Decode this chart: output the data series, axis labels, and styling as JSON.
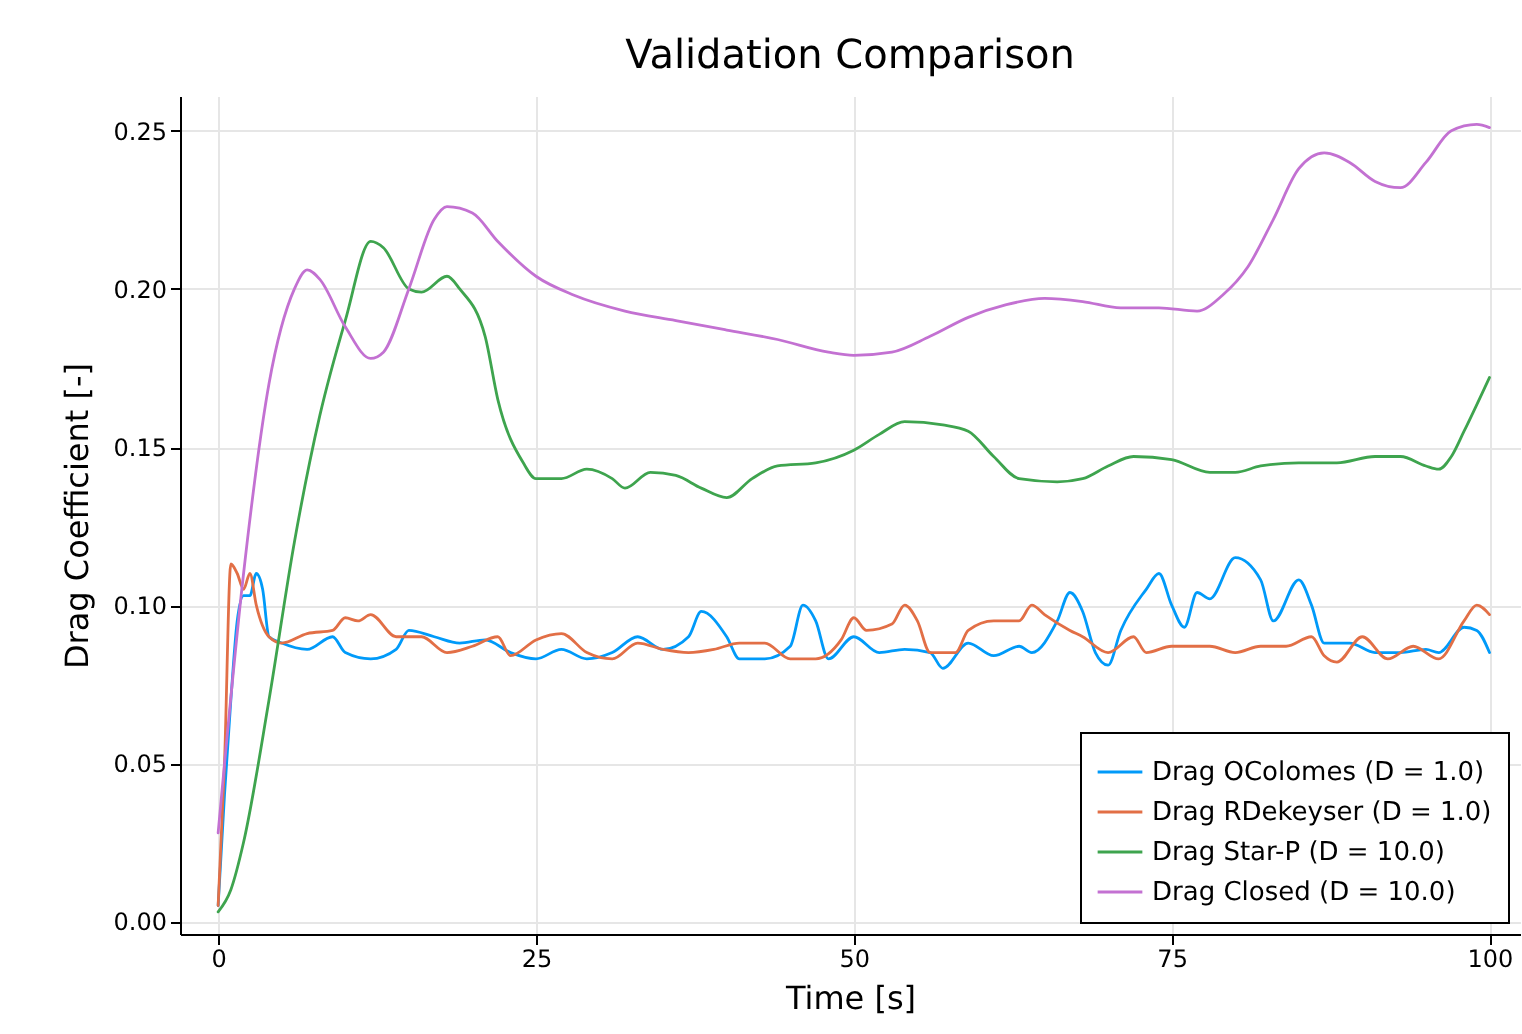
{
  "chart_data": {
    "type": "line",
    "title": "Validation Comparison",
    "xlabel": "Time [s]",
    "ylabel": "Drag Coefficient [-]",
    "xlim": [
      -3,
      102.4
    ],
    "ylim": [
      -0.004,
      0.261
    ],
    "xticks": [
      0,
      25,
      50,
      75,
      100
    ],
    "yticks": [
      {
        "value": 0,
        "label": "0.00"
      },
      {
        "value": 0.05,
        "label": "0.05"
      },
      {
        "value": 0.1,
        "label": "0.10"
      },
      {
        "value": 0.15,
        "label": "0.15"
      },
      {
        "value": 0.2,
        "label": "0.20"
      },
      {
        "value": 0.25,
        "label": "0.25"
      }
    ],
    "grid": true,
    "legend": "bottom right",
    "line_style": "solid",
    "marker": "none",
    "series": [
      {
        "name": "Drag OColomes (D = 1.0)",
        "color": "#009af9",
        "x": [
          0,
          0.5,
          1,
          1.5,
          2,
          2.5,
          3,
          3.5,
          4,
          5,
          7,
          9,
          10,
          12,
          14,
          15,
          17,
          19,
          21,
          23,
          25,
          27,
          29,
          31,
          33,
          35,
          37,
          38,
          40,
          41,
          43,
          45,
          46,
          47,
          48,
          50,
          52,
          54,
          56,
          57,
          59,
          61,
          63,
          64,
          66,
          67,
          68,
          69,
          70,
          71,
          73,
          74,
          75,
          76,
          77,
          78,
          80,
          82,
          83,
          85,
          86,
          87,
          89,
          91,
          93,
          95,
          96,
          98,
          99,
          100
        ],
        "values": [
          0.005,
          0.04,
          0.07,
          0.095,
          0.103,
          0.103,
          0.11,
          0.105,
          0.09,
          0.088,
          0.086,
          0.09,
          0.085,
          0.083,
          0.086,
          0.092,
          0.09,
          0.088,
          0.089,
          0.085,
          0.083,
          0.086,
          0.083,
          0.085,
          0.09,
          0.086,
          0.09,
          0.098,
          0.09,
          0.083,
          0.083,
          0.087,
          0.1,
          0.095,
          0.083,
          0.09,
          0.085,
          0.086,
          0.085,
          0.08,
          0.088,
          0.084,
          0.087,
          0.085,
          0.095,
          0.104,
          0.098,
          0.085,
          0.081,
          0.092,
          0.105,
          0.11,
          0.1,
          0.093,
          0.104,
          0.102,
          0.115,
          0.108,
          0.095,
          0.108,
          0.1,
          0.088,
          0.088,
          0.085,
          0.085,
          0.086,
          0.085,
          0.093,
          0.092,
          0.085
        ]
      },
      {
        "name": "Drag RDekeyser (D = 1.0)",
        "color": "#e26f46",
        "x": [
          0,
          0.5,
          1,
          1.5,
          2,
          2.5,
          3,
          4,
          5,
          7,
          9,
          10,
          11,
          12,
          14,
          16,
          18,
          20,
          22,
          23,
          25,
          27,
          29,
          31,
          33,
          35,
          37,
          39,
          41,
          43,
          45,
          47,
          49,
          50,
          51,
          53,
          54,
          55,
          56,
          58,
          59,
          61,
          63,
          64,
          65,
          67,
          68,
          70,
          72,
          73,
          75,
          76,
          78,
          80,
          82,
          84,
          86,
          87,
          88,
          90,
          92,
          94,
          96,
          98,
          99,
          100
        ],
        "values": [
          0.005,
          0.05,
          0.113,
          0.11,
          0.105,
          0.11,
          0.1,
          0.09,
          0.088,
          0.091,
          0.092,
          0.096,
          0.095,
          0.097,
          0.09,
          0.09,
          0.085,
          0.087,
          0.09,
          0.084,
          0.089,
          0.091,
          0.085,
          0.083,
          0.088,
          0.086,
          0.085,
          0.086,
          0.088,
          0.088,
          0.083,
          0.083,
          0.089,
          0.096,
          0.092,
          0.094,
          0.1,
          0.095,
          0.085,
          0.085,
          0.092,
          0.095,
          0.095,
          0.1,
          0.097,
          0.092,
          0.09,
          0.085,
          0.09,
          0.085,
          0.087,
          0.087,
          0.087,
          0.085,
          0.087,
          0.087,
          0.09,
          0.084,
          0.082,
          0.09,
          0.083,
          0.087,
          0.083,
          0.095,
          0.1,
          0.097
        ]
      },
      {
        "name": "Drag Star-P (D = 10.0)",
        "color": "#3ea44e",
        "x": [
          0,
          1,
          2,
          4,
          6,
          8,
          10,
          12,
          13,
          15,
          16,
          18,
          19,
          21,
          22,
          24,
          25,
          27,
          29,
          31,
          32,
          34,
          36,
          38,
          40,
          42,
          44,
          47,
          50,
          52,
          54,
          57,
          59,
          61,
          63,
          66,
          68,
          70,
          72,
          75,
          78,
          80,
          82,
          85,
          88,
          91,
          93,
          95,
          96,
          97,
          98,
          100
        ],
        "values": [
          0.003,
          0.01,
          0.025,
          0.07,
          0.12,
          0.16,
          0.19,
          0.215,
          0.213,
          0.2,
          0.199,
          0.204,
          0.2,
          0.185,
          0.165,
          0.145,
          0.14,
          0.14,
          0.143,
          0.14,
          0.137,
          0.142,
          0.141,
          0.137,
          0.134,
          0.14,
          0.144,
          0.145,
          0.149,
          0.154,
          0.158,
          0.157,
          0.155,
          0.147,
          0.14,
          0.139,
          0.14,
          0.144,
          0.147,
          0.146,
          0.142,
          0.142,
          0.144,
          0.145,
          0.145,
          0.147,
          0.147,
          0.144,
          0.143,
          0.147,
          0.155,
          0.172
        ]
      },
      {
        "name": "Drag Closed (D = 10.0)",
        "color": "#c371d2",
        "x": [
          0,
          2,
          4,
          6,
          7,
          8,
          10,
          12,
          13,
          15,
          17,
          18,
          20,
          22,
          25,
          28,
          32,
          36,
          40,
          44,
          48,
          50,
          53,
          56,
          59,
          62,
          65,
          68,
          71,
          74,
          77,
          79,
          81,
          83,
          85,
          87,
          89,
          91,
          93,
          95,
          97,
          99,
          100
        ],
        "values": [
          0.028,
          0.11,
          0.17,
          0.2,
          0.206,
          0.203,
          0.188,
          0.178,
          0.18,
          0.2,
          0.222,
          0.226,
          0.224,
          0.215,
          0.204,
          0.198,
          0.193,
          0.19,
          0.187,
          0.184,
          0.18,
          0.179,
          0.18,
          0.185,
          0.191,
          0.195,
          0.197,
          0.196,
          0.194,
          0.194,
          0.193,
          0.198,
          0.207,
          0.222,
          0.238,
          0.243,
          0.24,
          0.234,
          0.232,
          0.24,
          0.25,
          0.252,
          0.251
        ]
      }
    ]
  }
}
